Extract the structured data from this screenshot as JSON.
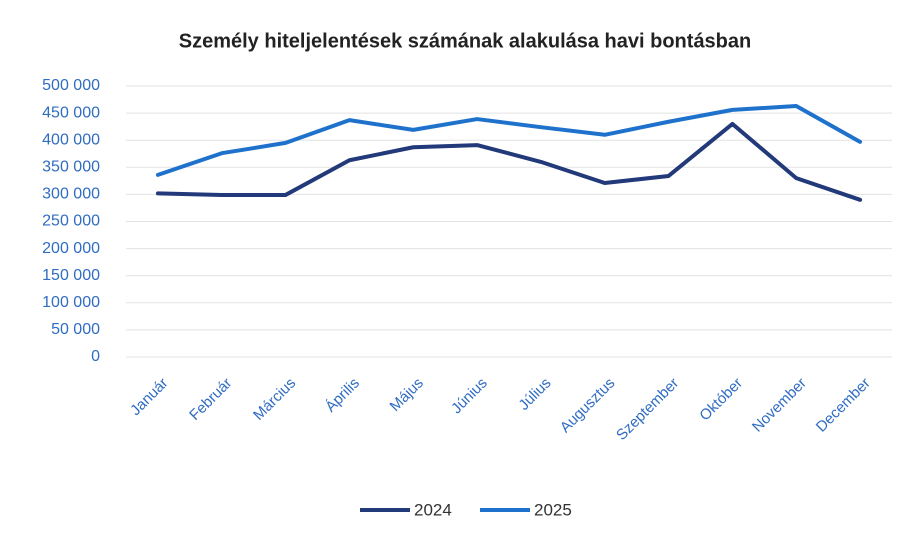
{
  "chart_data": {
    "type": "line",
    "title": "Személy hiteljelentések számának alakulása havi bontásban",
    "categories": [
      "Január",
      "Február",
      "Március",
      "Április",
      "Május",
      "Június",
      "Július",
      "Augusztus",
      "Szeptember",
      "Október",
      "November",
      "December"
    ],
    "series": [
      {
        "name": "2024",
        "color": "#22397a",
        "values": [
          302000,
          299000,
          299000,
          363000,
          387000,
          391000,
          360000,
          321000,
          334000,
          430000,
          330000,
          290000
        ]
      },
      {
        "name": "2025",
        "color": "#1f72cc",
        "values": [
          336000,
          376000,
          395000,
          437000,
          419000,
          439000,
          424000,
          410000,
          434000,
          456000,
          463000,
          397000
        ]
      }
    ],
    "ylim": [
      0,
      500000
    ],
    "yticks": [
      0,
      {
        "value": 50000,
        "label": "50 000"
      },
      {
        "value": 100000,
        "label": "100 000"
      },
      {
        "value": 150000,
        "label": "150 000"
      },
      {
        "value": 200000,
        "label": "200 000"
      },
      {
        "value": 250000,
        "label": "250 000"
      },
      {
        "value": 300000,
        "label": "300 000"
      },
      {
        "value": 350000,
        "label": "350 000"
      },
      {
        "value": 400000,
        "label": "400 000"
      },
      {
        "value": 450000,
        "label": "450 000"
      },
      {
        "value": 500000,
        "label": "500 000"
      }
    ],
    "grid": true,
    "legend": "bottom"
  }
}
